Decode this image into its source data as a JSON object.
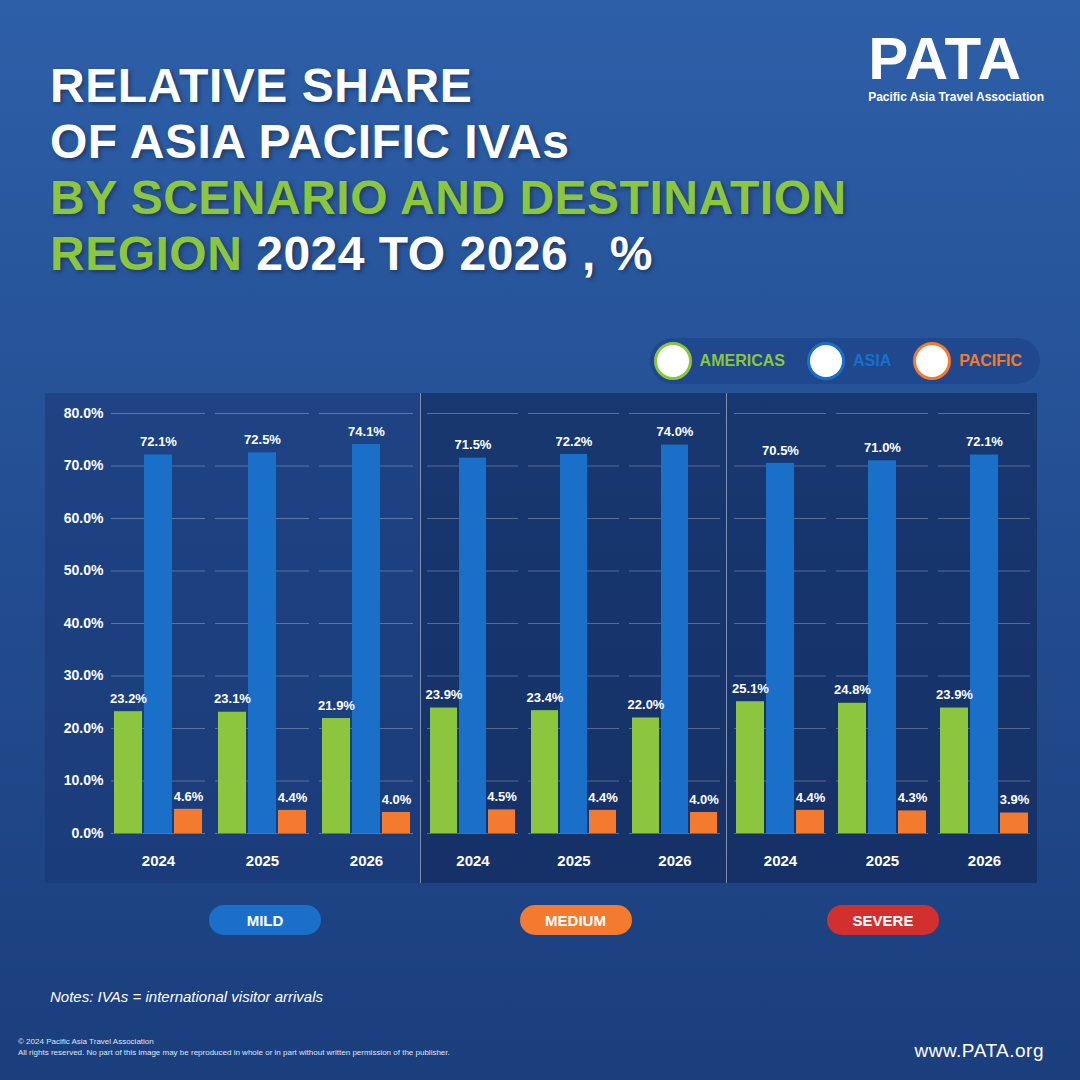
{
  "title": "RELATIVE SHARE OF ASIA PACIFIC IVAs BY SCENARIO AND DESTINATION REGION 2024 TO 2026 , %",
  "logo": {
    "name": "PATA",
    "subtitle": "Pacific Asia Travel Association"
  },
  "notes": "Notes: IVAs = international visitor arrivals",
  "copyright": [
    "© 2024 Pacific Asia Travel Association",
    "All rights reserved. No part of this image may be reproduced in whole or in part without written permission of the publisher."
  ],
  "url": "www.PATA.org",
  "chart_data": [
    {
      "type": "bar",
      "title": "MILD",
      "categories": [
        "2024",
        "2025",
        "2026"
      ],
      "series": [
        {
          "name": "AMERICAS",
          "color": "#8cc63e",
          "values": [
            23.2,
            23.1,
            21.9
          ],
          "value_labels": [
            "23.2%",
            "23.1%",
            "21.9%"
          ]
        },
        {
          "name": "ASIA",
          "color": "#1a6fc9",
          "values": [
            72.1,
            72.5,
            74.1
          ],
          "value_labels": [
            "72.1%",
            "72.5%",
            "74.1%"
          ]
        },
        {
          "name": "PACIFIC",
          "color": "#f47a2f",
          "values": [
            4.6,
            4.4,
            4.0
          ],
          "value_labels": [
            "4.6%",
            "4.4%",
            "4.0%"
          ]
        }
      ],
      "ylim": [
        0,
        80
      ],
      "yticks": [
        {
          "value": 0,
          "label": "0.0%"
        },
        {
          "value": 10,
          "label": "10.0%"
        },
        {
          "value": 20,
          "label": "20.0%"
        },
        {
          "value": 30,
          "label": "30.0%"
        },
        {
          "value": 40,
          "label": "40.0%"
        },
        {
          "value": 50,
          "label": "50.0%"
        },
        {
          "value": 60,
          "label": "60.0%"
        },
        {
          "value": 70,
          "label": "70.0%"
        },
        {
          "value": 80,
          "label": "80.0%"
        }
      ],
      "grid": true,
      "data_labels": true,
      "tick_labels": true
    },
    {
      "type": "bar",
      "title": "MEDIUM",
      "categories": [
        "2024",
        "2025",
        "2026"
      ],
      "series": [
        {
          "name": "AMERICAS",
          "color": "#8cc63e",
          "values": [
            23.9,
            23.4,
            22.0
          ],
          "value_labels": [
            "23.9%",
            "23.4%",
            "22.0%"
          ]
        },
        {
          "name": "ASIA",
          "color": "#1a6fc9",
          "values": [
            71.5,
            72.2,
            74.0
          ],
          "value_labels": [
            "71.5%",
            "72.2%",
            "74.0%"
          ]
        },
        {
          "name": "PACIFIC",
          "color": "#f47a2f",
          "values": [
            4.5,
            4.4,
            4.0
          ],
          "value_labels": [
            "4.5%",
            "4.4%",
            "4.0%"
          ]
        }
      ],
      "ylim": [
        0,
        80
      ],
      "yticks": [
        {
          "value": 0,
          "label": "0.0%"
        },
        {
          "value": 10,
          "label": "10.0%"
        },
        {
          "value": 20,
          "label": "20.0%"
        },
        {
          "value": 30,
          "label": "30.0%"
        },
        {
          "value": 40,
          "label": "40.0%"
        },
        {
          "value": 50,
          "label": "50.0%"
        },
        {
          "value": 60,
          "label": "60.0%"
        },
        {
          "value": 70,
          "label": "70.0%"
        },
        {
          "value": 80,
          "label": "80.0%"
        }
      ],
      "grid": true,
      "data_labels": true,
      "tick_labels": "x"
    },
    {
      "type": "bar",
      "title": "SEVERE",
      "categories": [
        "2024",
        "2025",
        "2026"
      ],
      "series": [
        {
          "name": "AMERICAS",
          "color": "#8cc63e",
          "values": [
            25.1,
            24.8,
            23.9
          ],
          "value_labels": [
            "25.1%",
            "24.8%",
            "23.9%"
          ]
        },
        {
          "name": "ASIA",
          "color": "#1a6fc9",
          "values": [
            70.5,
            71.0,
            72.1
          ],
          "value_labels": [
            "70.5%",
            "71.0%",
            "72.1%"
          ]
        },
        {
          "name": "PACIFIC",
          "color": "#f47a2f",
          "values": [
            4.4,
            4.3,
            3.9
          ],
          "value_labels": [
            "4.4%",
            "4.3%",
            "3.9%"
          ]
        }
      ],
      "ylim": [
        0,
        80
      ],
      "yticks": [
        {
          "value": 0,
          "label": "0.0%"
        },
        {
          "value": 10,
          "label": "10.0%"
        },
        {
          "value": 20,
          "label": "20.0%"
        },
        {
          "value": 30,
          "label": "30.0%"
        },
        {
          "value": 40,
          "label": "40.0%"
        },
        {
          "value": 50,
          "label": "50.0%"
        },
        {
          "value": 60,
          "label": "60.0%"
        },
        {
          "value": 70,
          "label": "70.0%"
        },
        {
          "value": 80,
          "label": "80.0%"
        }
      ],
      "grid": true,
      "data_labels": true,
      "tick_labels": "x",
      "legend": "top-right"
    }
  ]
}
